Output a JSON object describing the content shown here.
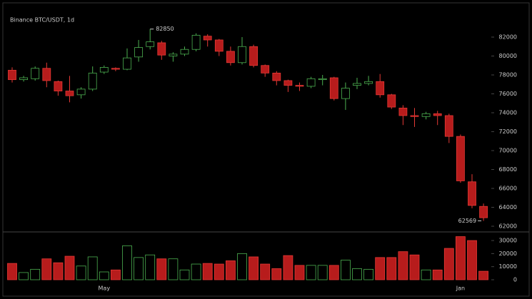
{
  "chart_data": {
    "type": "candlestick",
    "title": "Binance BTC/USDT, 1d",
    "categories": [
      null,
      null,
      null,
      null,
      null,
      null,
      null,
      null,
      "May",
      null,
      null,
      null,
      null,
      null,
      null,
      null,
      null,
      null,
      null,
      null,
      null,
      null,
      null,
      null,
      null,
      null,
      null,
      null,
      null,
      null,
      null,
      null,
      null,
      null,
      null,
      null,
      null,
      null,
      null,
      "Jan",
      null,
      null
    ],
    "open": [
      78500,
      77500,
      77600,
      78700,
      77300,
      76300,
      75900,
      76500,
      78300,
      78700,
      78600,
      79900,
      81000,
      81400,
      80000,
      80200,
      80700,
      82100,
      81700,
      80500,
      79300,
      81000,
      79000,
      78200,
      77400,
      76900,
      76800,
      77500,
      77700,
      75500,
      76900,
      77100,
      77300,
      75900,
      74500,
      73700,
      73600,
      73900,
      73700,
      71500,
      66700,
      64100
    ],
    "high": [
      78800,
      77900,
      78900,
      79300,
      77400,
      77900,
      76700,
      78900,
      79000,
      78800,
      80800,
      81700,
      82850,
      81600,
      80400,
      81000,
      82400,
      82300,
      81800,
      81000,
      82000,
      81200,
      79100,
      78400,
      77500,
      77200,
      77800,
      78000,
      77800,
      77200,
      77700,
      77900,
      78100,
      76000,
      74800,
      74500,
      74100,
      74200,
      73900,
      71700,
      67500,
      64400
    ],
    "low": [
      77200,
      77300,
      77400,
      76700,
      75800,
      75100,
      75500,
      76300,
      78100,
      78400,
      78500,
      79400,
      80700,
      79600,
      79400,
      80000,
      80500,
      81000,
      80000,
      79000,
      79100,
      78800,
      77800,
      76900,
      76200,
      76300,
      76600,
      76900,
      75300,
      74300,
      76500,
      76900,
      75600,
      74400,
      72700,
      72500,
      73300,
      72700,
      70800,
      66600,
      63900,
      62569
    ],
    "close": [
      77500,
      77700,
      78700,
      77400,
      76300,
      75800,
      76500,
      78200,
      78800,
      78600,
      79800,
      80900,
      81500,
      80100,
      80200,
      80700,
      82200,
      81700,
      80500,
      79300,
      81000,
      79000,
      78200,
      77400,
      76900,
      76800,
      77600,
      77600,
      75500,
      76600,
      77100,
      77300,
      75900,
      74600,
      73700,
      73600,
      73900,
      73700,
      71500,
      66800,
      64200,
      62900
    ],
    "volume": [
      12500,
      5500,
      8000,
      16000,
      13000,
      18000,
      10500,
      17500,
      6000,
      7500,
      26000,
      17000,
      19000,
      16000,
      16000,
      7500,
      12000,
      12500,
      12000,
      14500,
      20000,
      17500,
      12000,
      8500,
      18500,
      11000,
      11000,
      11000,
      11000,
      15000,
      8500,
      8000,
      17000,
      17000,
      21500,
      19000,
      7500,
      7500,
      24000,
      33000,
      30000,
      6500
    ],
    "up_color": "#4caf50",
    "down_color": "#b71c1c",
    "ylim": [
      61550,
      83660
    ],
    "yticks": [
      62000,
      64000,
      66000,
      68000,
      70000,
      72000,
      74000,
      76000,
      78000,
      80000,
      82000
    ],
    "y2lim": [
      0,
      35500
    ],
    "y2ticks": [
      0,
      10000,
      20000,
      30000
    ],
    "annotations": [
      82850,
      62569
    ]
  }
}
